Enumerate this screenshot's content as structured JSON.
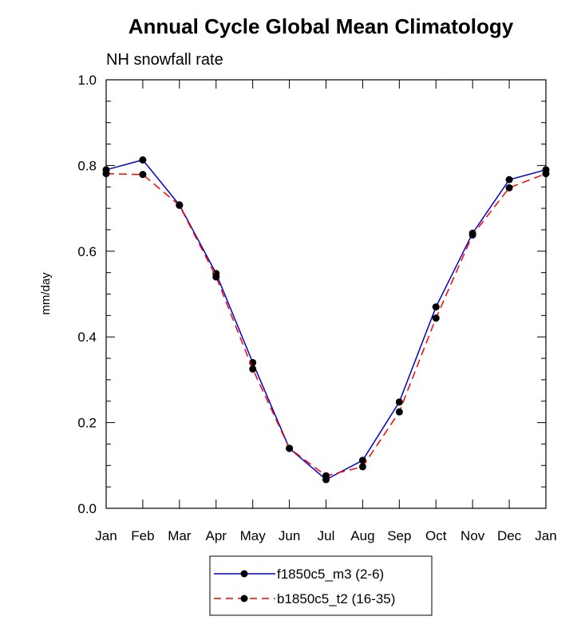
{
  "chart_data": {
    "type": "line",
    "title": "Annual Cycle Global Mean Climatology",
    "subtitle": "NH snowfall rate",
    "xlabel": "",
    "ylabel": "mm/day",
    "ylim": [
      0.0,
      1.0
    ],
    "yticks": [
      "0.0",
      "0.2",
      "0.4",
      "0.6",
      "0.8",
      "1.0"
    ],
    "categories": [
      "Jan",
      "Feb",
      "Mar",
      "Apr",
      "May",
      "Jun",
      "Jul",
      "Aug",
      "Sep",
      "Oct",
      "Nov",
      "Dec",
      "Jan"
    ],
    "series": [
      {
        "name": "f1850c5_m3 (2-6)",
        "color": "#0000cc",
        "style": "solid",
        "values": [
          0.79,
          0.813,
          0.708,
          0.548,
          0.34,
          0.14,
          0.067,
          0.112,
          0.248,
          0.47,
          0.642,
          0.767,
          0.79
        ]
      },
      {
        "name": "b1850c5_t2 (16-35)",
        "color": "#ff0000",
        "style": "dashed",
        "values": [
          0.781,
          0.779,
          0.707,
          0.54,
          0.325,
          0.14,
          0.076,
          0.097,
          0.225,
          0.444,
          0.638,
          0.748,
          0.781
        ]
      }
    ],
    "legend_position": "bottom-center"
  }
}
